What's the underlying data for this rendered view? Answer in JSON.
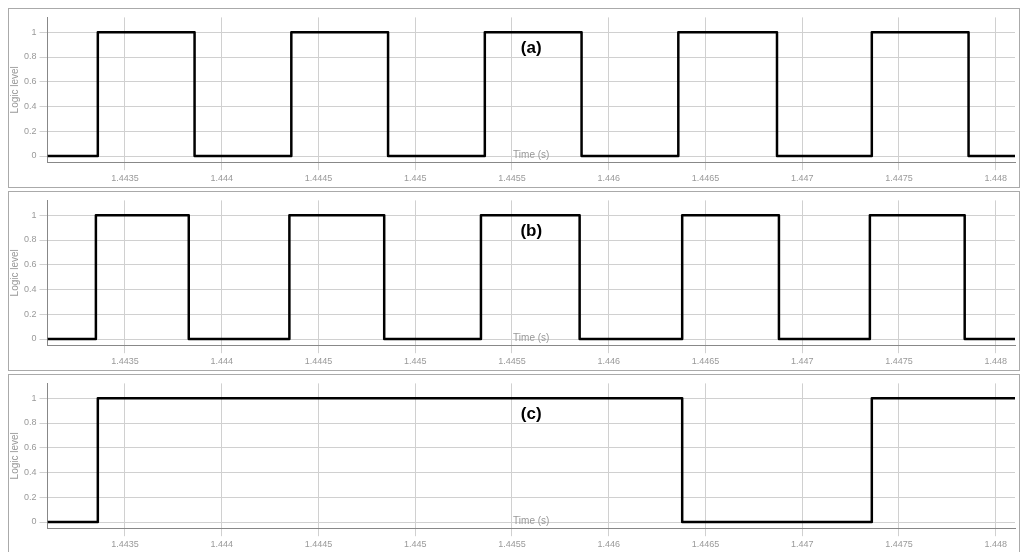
{
  "chart_data": [
    {
      "type": "step",
      "title": "(a)",
      "xlabel": "Time (s)",
      "ylabel": "Logic level",
      "xlim": [
        1.4431,
        1.4481
      ],
      "xticks": [
        1.4435,
        1.444,
        1.4445,
        1.445,
        1.4455,
        1.446,
        1.4465,
        1.447,
        1.4475,
        1.448
      ],
      "ylim": [
        -0.05,
        1.12
      ],
      "yticks": [
        0,
        0.2,
        0.4,
        0.6,
        0.8,
        1
      ],
      "grid": true,
      "series": [
        {
          "color": "#000000",
          "x": [
            1.4431,
            1.44336,
            1.44386,
            1.44436,
            1.44486,
            1.44536,
            1.44586,
            1.44636,
            1.44687,
            1.44736,
            1.44786,
            1.4481
          ],
          "values": [
            0,
            1,
            0,
            1,
            0,
            1,
            0,
            1,
            0,
            1,
            0,
            0
          ]
        }
      ]
    },
    {
      "type": "step",
      "title": "(b)",
      "xlabel": "Time (s)",
      "ylabel": "Logic level",
      "xlim": [
        1.4431,
        1.4481
      ],
      "xticks": [
        1.4435,
        1.444,
        1.4445,
        1.445,
        1.4455,
        1.446,
        1.4465,
        1.447,
        1.4475,
        1.448
      ],
      "ylim": [
        -0.05,
        1.12
      ],
      "yticks": [
        0,
        0.2,
        0.4,
        0.6,
        0.8,
        1
      ],
      "grid": true,
      "series": [
        {
          "color": "#000000",
          "x": [
            1.4431,
            1.44335,
            1.44383,
            1.44435,
            1.44484,
            1.44534,
            1.44585,
            1.44638,
            1.44688,
            1.44735,
            1.44784,
            1.4481
          ],
          "values": [
            0,
            1,
            0,
            1,
            0,
            1,
            0,
            1,
            0,
            1,
            0,
            0
          ]
        }
      ]
    },
    {
      "type": "step",
      "title": "(c)",
      "xlabel": "Time (s)",
      "ylabel": "Logic level",
      "xlim": [
        1.4431,
        1.4481
      ],
      "xticks": [
        1.4435,
        1.444,
        1.4445,
        1.445,
        1.4455,
        1.446,
        1.4465,
        1.447,
        1.4475,
        1.448
      ],
      "ylim": [
        -0.05,
        1.12
      ],
      "yticks": [
        0,
        0.2,
        0.4,
        0.6,
        0.8,
        1
      ],
      "grid": true,
      "series": [
        {
          "color": "#000000",
          "x": [
            1.4431,
            1.44336,
            1.44638,
            1.44736,
            1.4481
          ],
          "values": [
            0,
            1,
            0,
            1,
            1
          ]
        }
      ]
    }
  ]
}
